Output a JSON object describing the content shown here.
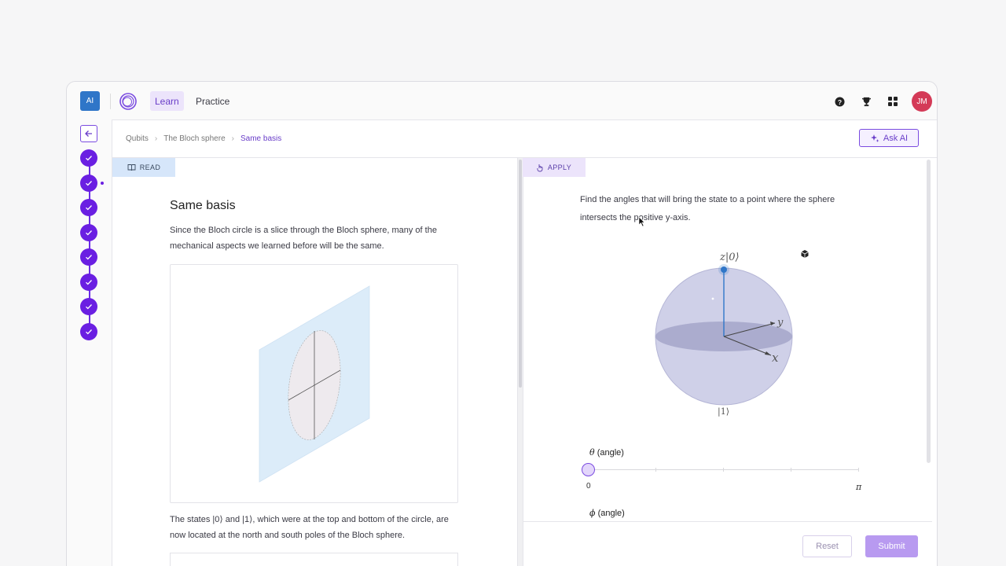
{
  "topbar": {
    "ai_badge": "AI",
    "nav": {
      "learn": "Learn",
      "practice": "Practice"
    },
    "icons": [
      "help-icon",
      "trophy-icon",
      "apps-grid-icon"
    ],
    "avatar_initials": "JM"
  },
  "breadcrumb": {
    "items": [
      "Qubits",
      "The Bloch sphere"
    ],
    "current": "Same basis"
  },
  "ask_ai": "Ask AI",
  "read_tab": "READ",
  "apply_tab": "APPLY",
  "lesson": {
    "title": "Same basis",
    "para1": "Since the Bloch circle is a slice through the Bloch sphere, many of the mechanical aspects we learned before will be the same.",
    "para2": "The states |0⟩ and |1⟩, which were at the top and bottom of the circle, are now located at the north and south poles of the Bloch sphere."
  },
  "exercise": {
    "instruction": "Find the angles that will bring the state to a point where the sphere intersects the positive y-axis.",
    "sphere_labels": {
      "top": "z|0⟩",
      "bottom": "|1⟩",
      "y": "y",
      "x": "x"
    },
    "theta": {
      "symbol": "θ",
      "label": "(angle)",
      "min": "0",
      "max": "π",
      "value": 0
    },
    "phi": {
      "symbol": "ϕ",
      "label": "(angle)"
    }
  },
  "buttons": {
    "reset": "Reset",
    "submit": "Submit"
  },
  "colors": {
    "accent": "#6a1fe2",
    "brand_blue": "#2f76c8",
    "avatar": "#d43a57"
  },
  "steps": {
    "count": 8,
    "all_completed": true
  }
}
